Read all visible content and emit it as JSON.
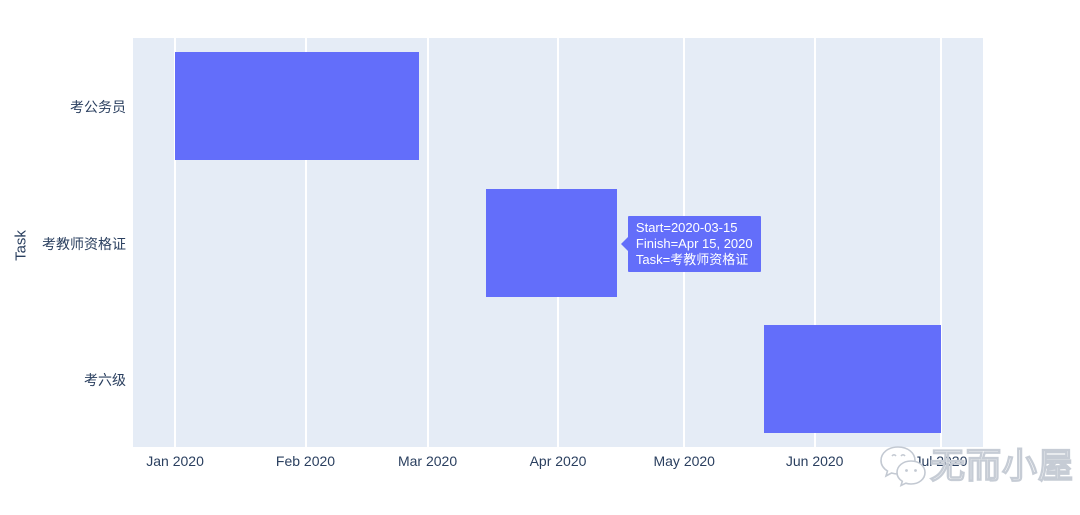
{
  "chart_data": {
    "type": "bar",
    "subtype": "gantt-timeline",
    "title": "",
    "xlabel": "",
    "ylabel": "Task",
    "legend": "none",
    "grid": "vertical-white",
    "x_domain": [
      "2019-12-22",
      "2020-07-11"
    ],
    "xticks": [
      {
        "label": "Jan 2020",
        "date": "2020-01-01"
      },
      {
        "label": "Feb 2020",
        "date": "2020-02-01"
      },
      {
        "label": "Mar 2020",
        "date": "2020-03-01"
      },
      {
        "label": "Apr 2020",
        "date": "2020-04-01"
      },
      {
        "label": "May 2020",
        "date": "2020-05-01"
      },
      {
        "label": "Jun 2020",
        "date": "2020-06-01"
      },
      {
        "label": "Jul 2020",
        "date": "2020-07-01"
      }
    ],
    "tasks": [
      {
        "task": "考公务员",
        "start": "2020-01-01",
        "finish": "2020-02-28"
      },
      {
        "task": "考教师资格证",
        "start": "2020-03-15",
        "finish": "2020-04-15"
      },
      {
        "task": "考六级",
        "start": "2020-05-20",
        "finish": "2020-07-01"
      }
    ],
    "colors": {
      "bar": "#636efa",
      "plot_background": "#e5ecf6",
      "grid": "#ffffff",
      "text": "#2a3f5f"
    }
  },
  "y_axis": {
    "title": "Task"
  },
  "tooltip": {
    "target_task_index": 1,
    "start_line": "Start=2020-03-15",
    "finish_line": "Finish=Apr 15, 2020",
    "task_line": "Task=考教师资格证",
    "bg": "#636efa",
    "text_color": "#ffffff"
  },
  "watermark": {
    "text": "无而小屋",
    "icon": "wechat-icon"
  }
}
